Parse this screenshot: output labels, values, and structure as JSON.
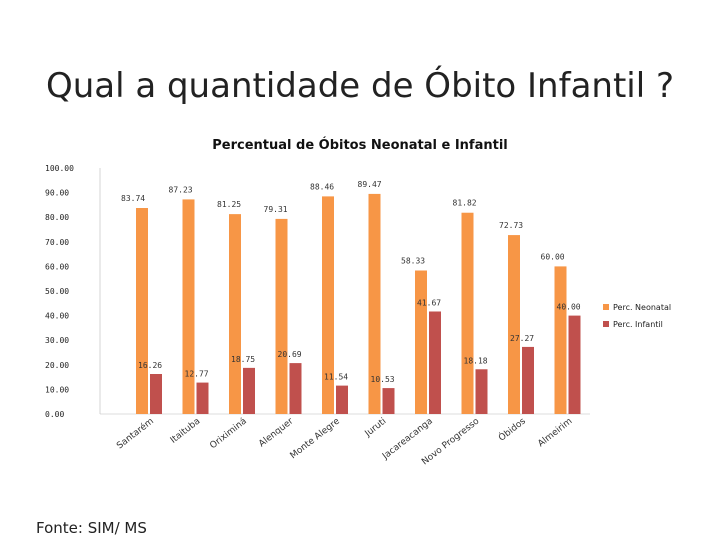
{
  "slide": {
    "title": "Qual a quantidade de Óbito Infantil ?",
    "source": "Fonte: SIM/ MS"
  },
  "colors": {
    "neonatal": "#F79646",
    "infantil": "#C0504D",
    "text": "#222222"
  },
  "chart_data": {
    "type": "bar",
    "title": "Percentual de Óbitos Neonatal e Infantil",
    "xlabel": "",
    "ylabel": "",
    "ylim": [
      0,
      100
    ],
    "yticks": [
      "0.00",
      "10.00",
      "20.00",
      "30.00",
      "40.00",
      "50.00",
      "60.00",
      "70.00",
      "80.00",
      "90.00",
      "100.00"
    ],
    "categories": [
      "Santarém",
      "Itaituba",
      "Oriximiná",
      "Alenquer",
      "Monte Alegre",
      "Juruti",
      "Jacareacanga",
      "Novo Progresso",
      "Óbidos",
      "Almeirim"
    ],
    "series": [
      {
        "name": "Perc. Neonatal",
        "values": [
          83.74,
          87.23,
          81.25,
          79.31,
          88.46,
          89.47,
          58.33,
          81.82,
          72.73,
          60.0
        ],
        "labels": [
          "83.74",
          "87.23",
          "81.25",
          "79.31",
          "88.46",
          "89.47",
          "58.33",
          "81.82",
          "72.73",
          "60.00"
        ]
      },
      {
        "name": "Perc. Infantil",
        "values": [
          16.26,
          12.77,
          18.75,
          20.69,
          11.54,
          10.53,
          41.67,
          18.18,
          27.27,
          40.0
        ],
        "labels": [
          "16.26",
          "12.77",
          "18.75",
          "20.69",
          "11.54",
          "10.53",
          "41.67",
          "18.18",
          "27.27",
          "40.00"
        ]
      }
    ],
    "legend": "right",
    "grid": false
  }
}
